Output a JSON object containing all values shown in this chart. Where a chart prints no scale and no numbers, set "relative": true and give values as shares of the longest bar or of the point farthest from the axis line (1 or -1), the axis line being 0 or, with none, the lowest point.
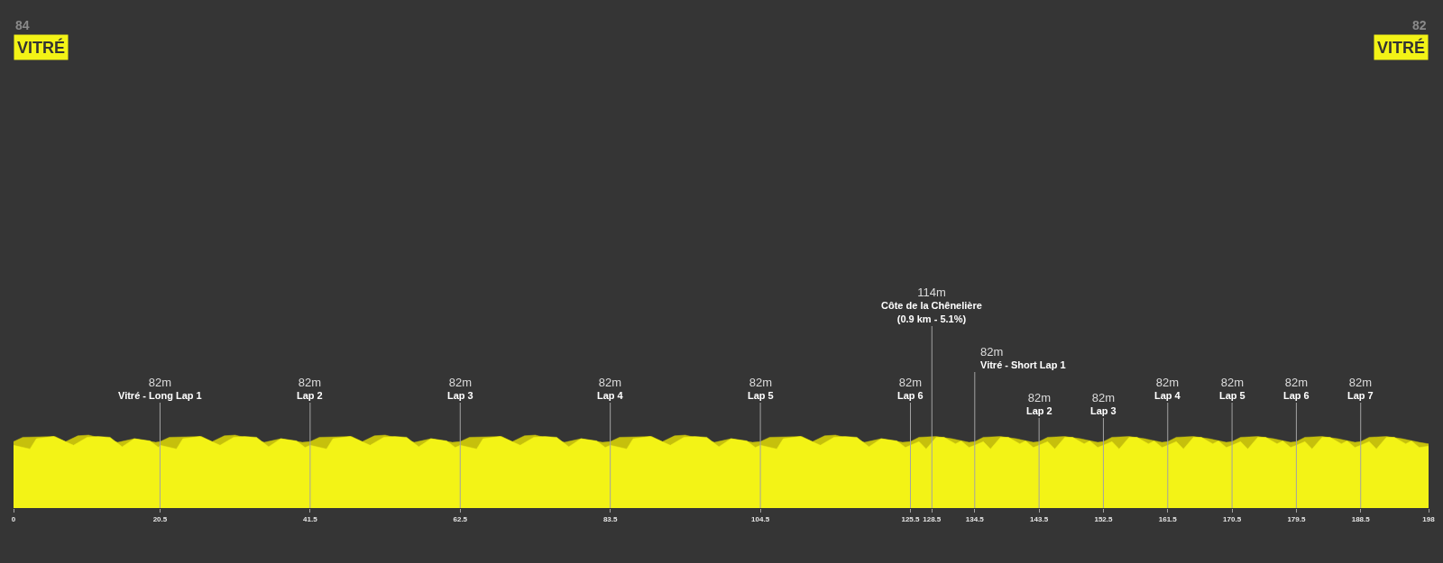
{
  "chart_data": {
    "type": "area",
    "relative": true,
    "xlim": [
      0,
      198
    ],
    "xticks": [
      0,
      20.5,
      41.5,
      62.5,
      83.5,
      104.5,
      125.5,
      128.5,
      134.5,
      143.5,
      152.5,
      161.5,
      170.5,
      179.5,
      188.5,
      198
    ],
    "series": [
      {
        "color": "#c6c00c",
        "x": [
          0,
          1.3,
          5.8,
          7.3,
          9.0,
          10.5,
          14.6,
          16.9,
          19.9,
          20.5,
          21.8,
          26.3,
          27.8,
          29.5,
          31.0,
          35.1,
          37.4,
          40.4,
          41.5,
          42.8,
          47.3,
          48.8,
          50.5,
          52.0,
          56.1,
          58.4,
          61.4,
          62.5,
          63.8,
          68.3,
          69.8,
          71.5,
          73.0,
          77.1,
          79.4,
          82.4,
          83.5,
          84.8,
          89.3,
          90.8,
          92.5,
          94.0,
          98.1,
          100.4,
          103.4,
          104.5,
          105.8,
          110.3,
          111.8,
          113.5,
          115.0,
          119.1,
          121.4,
          124.4,
          125.5,
          126.7,
          129.1,
          131.3,
          133.7,
          134.5,
          135.7,
          138.1,
          140.3,
          142.7,
          143.5,
          144.7,
          147.1,
          149.3,
          151.7,
          152.5,
          153.7,
          156.1,
          158.3,
          160.7,
          161.5,
          162.7,
          165.1,
          167.3,
          169.7,
          170.5,
          171.7,
          174.1,
          176.3,
          178.7,
          179.5,
          180.7,
          183.1,
          185.3,
          187.7,
          188.5,
          189.7,
          192.1,
          194.3,
          196.7,
          198
        ],
        "values": [
          0.91,
          0.97,
          0.98,
          0.91,
          0.99,
          1.0,
          0.9,
          0.95,
          0.9,
          0.91,
          0.97,
          0.98,
          0.91,
          0.99,
          1.0,
          0.9,
          0.95,
          0.9,
          0.91,
          0.97,
          0.98,
          0.91,
          0.99,
          1.0,
          0.9,
          0.95,
          0.9,
          0.91,
          0.97,
          0.98,
          0.91,
          0.99,
          1.0,
          0.9,
          0.95,
          0.9,
          0.91,
          0.97,
          0.98,
          0.91,
          0.99,
          1.0,
          0.9,
          0.95,
          0.9,
          0.91,
          0.97,
          0.98,
          0.91,
          0.99,
          1.0,
          0.9,
          0.95,
          0.9,
          0.91,
          0.97,
          0.98,
          0.95,
          0.9,
          0.91,
          0.97,
          0.98,
          0.95,
          0.9,
          0.91,
          0.97,
          0.98,
          0.95,
          0.9,
          0.91,
          0.97,
          0.98,
          0.95,
          0.9,
          0.91,
          0.97,
          0.98,
          0.95,
          0.9,
          0.91,
          0.97,
          0.98,
          0.95,
          0.9,
          0.91,
          0.97,
          0.98,
          0.95,
          0.9,
          0.91,
          0.97,
          0.98,
          0.95,
          0.9,
          0.88
        ]
      },
      {
        "color": "#f3f316",
        "x": [
          0,
          2.3,
          3.2,
          5.6,
          8.4,
          10.3,
          11.8,
          13.5,
          15.2,
          16.9,
          19.1,
          20.3,
          20.5,
          22.8,
          23.7,
          26.1,
          28.9,
          30.8,
          32.3,
          34.0,
          35.7,
          37.4,
          39.6,
          40.8,
          41.5,
          43.8,
          44.7,
          47.1,
          49.9,
          51.8,
          53.3,
          55.0,
          56.7,
          58.4,
          60.6,
          61.8,
          62.5,
          64.8,
          65.7,
          68.1,
          70.9,
          72.8,
          74.3,
          76.0,
          77.7,
          79.4,
          81.6,
          82.8,
          83.5,
          85.8,
          86.7,
          89.1,
          91.9,
          93.8,
          95.3,
          97.0,
          98.7,
          100.4,
          102.6,
          103.8,
          104.5,
          106.8,
          107.7,
          110.1,
          112.9,
          114.8,
          116.3,
          118.0,
          119.7,
          121.4,
          123.6,
          124.8,
          125.5,
          126.7,
          127.7,
          129.1,
          130.2,
          131.8,
          132.6,
          133.7,
          134.5,
          135.7,
          136.7,
          138.1,
          139.2,
          140.8,
          141.6,
          142.7,
          143.5,
          144.7,
          145.7,
          147.1,
          148.2,
          149.8,
          150.6,
          151.7,
          152.5,
          153.7,
          154.7,
          156.1,
          157.2,
          158.8,
          159.6,
          160.7,
          161.5,
          162.7,
          163.7,
          165.1,
          166.2,
          167.8,
          168.6,
          169.7,
          170.5,
          171.7,
          172.7,
          174.1,
          175.2,
          176.8,
          177.6,
          178.7,
          179.5,
          180.7,
          181.7,
          183.1,
          184.2,
          185.8,
          186.6,
          187.7,
          188.5,
          189.7,
          190.7,
          192.1,
          193.2,
          194.8,
          195.6,
          196.7,
          198
        ],
        "values": [
          0.86,
          0.81,
          0.95,
          0.98,
          0.86,
          0.97,
          0.98,
          0.97,
          0.84,
          0.95,
          0.92,
          0.83,
          0.86,
          0.81,
          0.95,
          0.98,
          0.86,
          0.97,
          0.98,
          0.97,
          0.84,
          0.95,
          0.92,
          0.83,
          0.86,
          0.81,
          0.95,
          0.98,
          0.86,
          0.97,
          0.98,
          0.97,
          0.84,
          0.95,
          0.92,
          0.83,
          0.86,
          0.81,
          0.95,
          0.98,
          0.86,
          0.97,
          0.98,
          0.97,
          0.84,
          0.95,
          0.92,
          0.83,
          0.86,
          0.81,
          0.95,
          0.98,
          0.86,
          0.97,
          0.98,
          0.97,
          0.84,
          0.95,
          0.92,
          0.83,
          0.86,
          0.81,
          0.95,
          0.98,
          0.86,
          0.97,
          0.98,
          0.97,
          0.84,
          0.95,
          0.92,
          0.83,
          0.86,
          0.91,
          0.81,
          0.97,
          0.97,
          0.88,
          0.92,
          0.83,
          0.86,
          0.91,
          0.81,
          0.97,
          0.97,
          0.88,
          0.92,
          0.83,
          0.86,
          0.91,
          0.81,
          0.97,
          0.97,
          0.88,
          0.92,
          0.83,
          0.86,
          0.91,
          0.81,
          0.97,
          0.97,
          0.88,
          0.92,
          0.83,
          0.86,
          0.91,
          0.81,
          0.97,
          0.97,
          0.88,
          0.92,
          0.83,
          0.86,
          0.91,
          0.81,
          0.97,
          0.97,
          0.88,
          0.92,
          0.83,
          0.86,
          0.91,
          0.81,
          0.97,
          0.97,
          0.88,
          0.92,
          0.83,
          0.86,
          0.91,
          0.81,
          0.97,
          0.97,
          0.88,
          0.92,
          0.83,
          0.85
        ]
      }
    ],
    "ref_lines": [
      {
        "axis": "x",
        "value": 20.5,
        "label": "82m\nVitré - Long Lap 1"
      },
      {
        "axis": "x",
        "value": 41.5,
        "label": "82m\nLap 2"
      },
      {
        "axis": "x",
        "value": 62.5,
        "label": "82m\nLap 3"
      },
      {
        "axis": "x",
        "value": 83.5,
        "label": "82m\nLap 4"
      },
      {
        "axis": "x",
        "value": 104.5,
        "label": "82m\nLap 5"
      },
      {
        "axis": "x",
        "value": 125.5,
        "label": "82m\nLap 6"
      },
      {
        "axis": "x",
        "value": 128.5,
        "label": "114m\nCôte de la Chênelière\n(0.9 km - 5.1%)"
      },
      {
        "axis": "x",
        "value": 134.5,
        "label": "82m\nVitré - Short Lap 1"
      },
      {
        "axis": "x",
        "value": 143.5,
        "label": "82m\nLap 2"
      },
      {
        "axis": "x",
        "value": 152.5,
        "label": "82m\nLap 3"
      },
      {
        "axis": "x",
        "value": 161.5,
        "label": "82m\nLap 4"
      },
      {
        "axis": "x",
        "value": 170.5,
        "label": "82m\nLap 5"
      },
      {
        "axis": "x",
        "value": 179.5,
        "label": "82m\nLap 6"
      },
      {
        "axis": "x",
        "value": 188.5,
        "label": "82m\nLap 7"
      }
    ],
    "annotations": [
      "84\nVITRÉ",
      "82\nVITRÉ"
    ]
  }
}
